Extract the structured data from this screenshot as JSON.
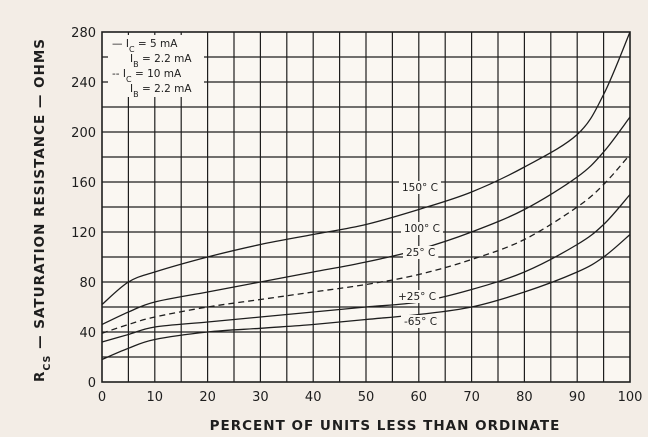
{
  "chart_data": {
    "type": "line",
    "xlabel": "PERCENT OF UNITS LESS THAN ORDINATE",
    "ylabel": "R",
    "ylabel_sub": "CS",
    "ylabel_rest": " — SATURATION RESISTANCE — OHMS",
    "xlim": [
      0,
      100
    ],
    "ylim": [
      0,
      280
    ],
    "x_ticks": [
      "0",
      "10",
      "20",
      "30",
      "40",
      "50",
      "60",
      "70",
      "80",
      "90",
      "100"
    ],
    "y_ticks": [
      "0",
      "40",
      "80",
      "120",
      "160",
      "200",
      "240",
      "280"
    ],
    "grid": true,
    "legend": {
      "placement": "top-left",
      "entries": [
        {
          "style": "solid",
          "line1": "— I",
          "line1_sub": "C",
          "line1_rest": " = 5 mA",
          "line2": "I",
          "line2_sub": "B",
          "line2_rest": " = 2.2 mA"
        },
        {
          "style": "dashed",
          "line1": "-- I",
          "line1_sub": "C",
          "line1_rest": " = 10 mA",
          "line2": "I",
          "line2_sub": "B",
          "line2_rest": " = 2.2 mA"
        }
      ]
    },
    "series": [
      {
        "label": "150° C",
        "style": "solid",
        "x": [
          0,
          5,
          10,
          20,
          30,
          40,
          50,
          60,
          70,
          80,
          90,
          95,
          100
        ],
        "y": [
          62,
          80,
          88,
          100,
          110,
          118,
          126,
          138,
          152,
          172,
          198,
          230,
          280
        ]
      },
      {
        "label": "100° C",
        "style": "solid",
        "x": [
          0,
          5,
          10,
          20,
          30,
          40,
          50,
          60,
          70,
          80,
          90,
          95,
          100
        ],
        "y": [
          46,
          56,
          64,
          72,
          80,
          88,
          96,
          106,
          120,
          138,
          164,
          184,
          212
        ]
      },
      {
        "label": "25° C",
        "style": "dashed",
        "x": [
          0,
          5,
          10,
          20,
          30,
          40,
          50,
          60,
          70,
          80,
          90,
          95,
          100
        ],
        "y": [
          39,
          46,
          52,
          60,
          66,
          72,
          78,
          86,
          98,
          114,
          140,
          158,
          182
        ]
      },
      {
        "label": "+25° C",
        "style": "solid",
        "x": [
          0,
          5,
          10,
          20,
          30,
          40,
          50,
          60,
          70,
          80,
          90,
          95,
          100
        ],
        "y": [
          32,
          38,
          44,
          48,
          52,
          56,
          60,
          64,
          74,
          88,
          110,
          126,
          150
        ]
      },
      {
        "label": "-65° C",
        "style": "solid",
        "x": [
          0,
          5,
          10,
          20,
          30,
          40,
          50,
          60,
          70,
          80,
          90,
          95,
          100
        ],
        "y": [
          18,
          27,
          34,
          40,
          43,
          46,
          50,
          54,
          60,
          72,
          88,
          100,
          118
        ]
      }
    ]
  }
}
